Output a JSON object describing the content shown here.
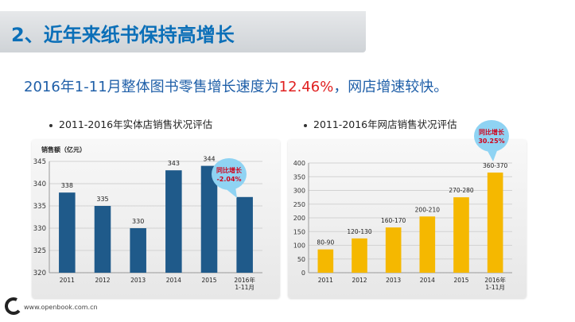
{
  "slide": {
    "title": "2、近年来纸书保持高增长",
    "headline_prefix": "2016年1-11月整体图书零售增长速度为",
    "headline_value": "12.46%",
    "headline_suffix": "，网店增速较快。",
    "footer_url": "www.openbook.com.cn"
  },
  "charts": {
    "left_subtitle": "2011-2016年实体店销售状况评估",
    "right_subtitle": "2011-2016年网店销售状况评估"
  },
  "colors": {
    "title_blue": "#0b6fb8",
    "left_bar": "#1f5a8a",
    "right_bar": "#f5b800",
    "callout_fill": "#8fd3f3",
    "callout_text": "#d0021b"
  },
  "chart_data": [
    {
      "type": "bar",
      "title": "2011-2016年实体店销售状况评估",
      "ylabel": "销售额（亿元）",
      "categories": [
        "2011",
        "2012",
        "2013",
        "2014",
        "2015",
        "2016年\n1-11月"
      ],
      "values": [
        338,
        335,
        330,
        343,
        344,
        337
      ],
      "data_labels": [
        "338",
        "335",
        "330",
        "343",
        "344",
        ""
      ],
      "ylim": [
        320,
        345
      ],
      "yticks": [
        320,
        325,
        330,
        335,
        340,
        345
      ],
      "grid": true,
      "callout": {
        "line1": "同比增长",
        "line2": "-2.04%"
      }
    },
    {
      "type": "bar",
      "title": "2011-2016年网店销售状况评估",
      "categories": [
        "2011",
        "2012",
        "2013",
        "2014",
        "2015",
        "2016年\n1-11月"
      ],
      "values": [
        85,
        125,
        165,
        205,
        275,
        365
      ],
      "data_labels": [
        "80-90",
        "120-130",
        "160-170",
        "200-210",
        "270-280",
        "360-370"
      ],
      "ylim": [
        0,
        400
      ],
      "yticks": [
        0,
        50,
        100,
        150,
        200,
        250,
        300,
        350,
        400
      ],
      "grid": true,
      "callout": {
        "line1": "同比增长",
        "line2": "30.25%"
      }
    }
  ]
}
